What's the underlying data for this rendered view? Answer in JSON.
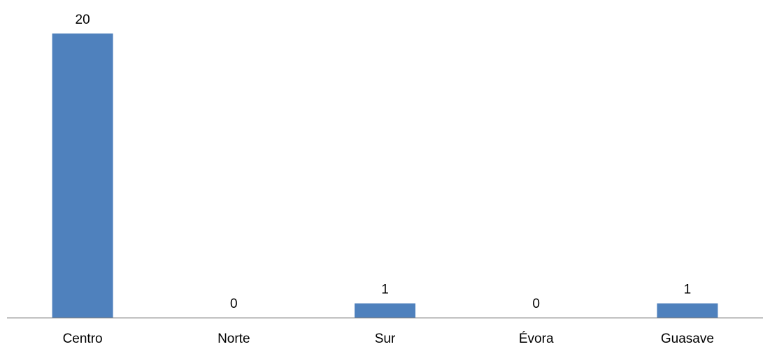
{
  "chart_data": {
    "type": "bar",
    "title": "",
    "xlabel": "",
    "ylabel": "",
    "categories": [
      "Centro",
      "Norte",
      "Sur",
      "Évora",
      "Guasave"
    ],
    "values": [
      20,
      0,
      1,
      0,
      1
    ],
    "data_labels": [
      "20",
      "0",
      "1",
      "0",
      "1"
    ],
    "ylim": [
      0,
      20
    ],
    "grid": false,
    "legend": "none",
    "colors": {
      "bar": "#4F81BD",
      "axis": "#7F7F7F",
      "text": "#000000"
    }
  }
}
